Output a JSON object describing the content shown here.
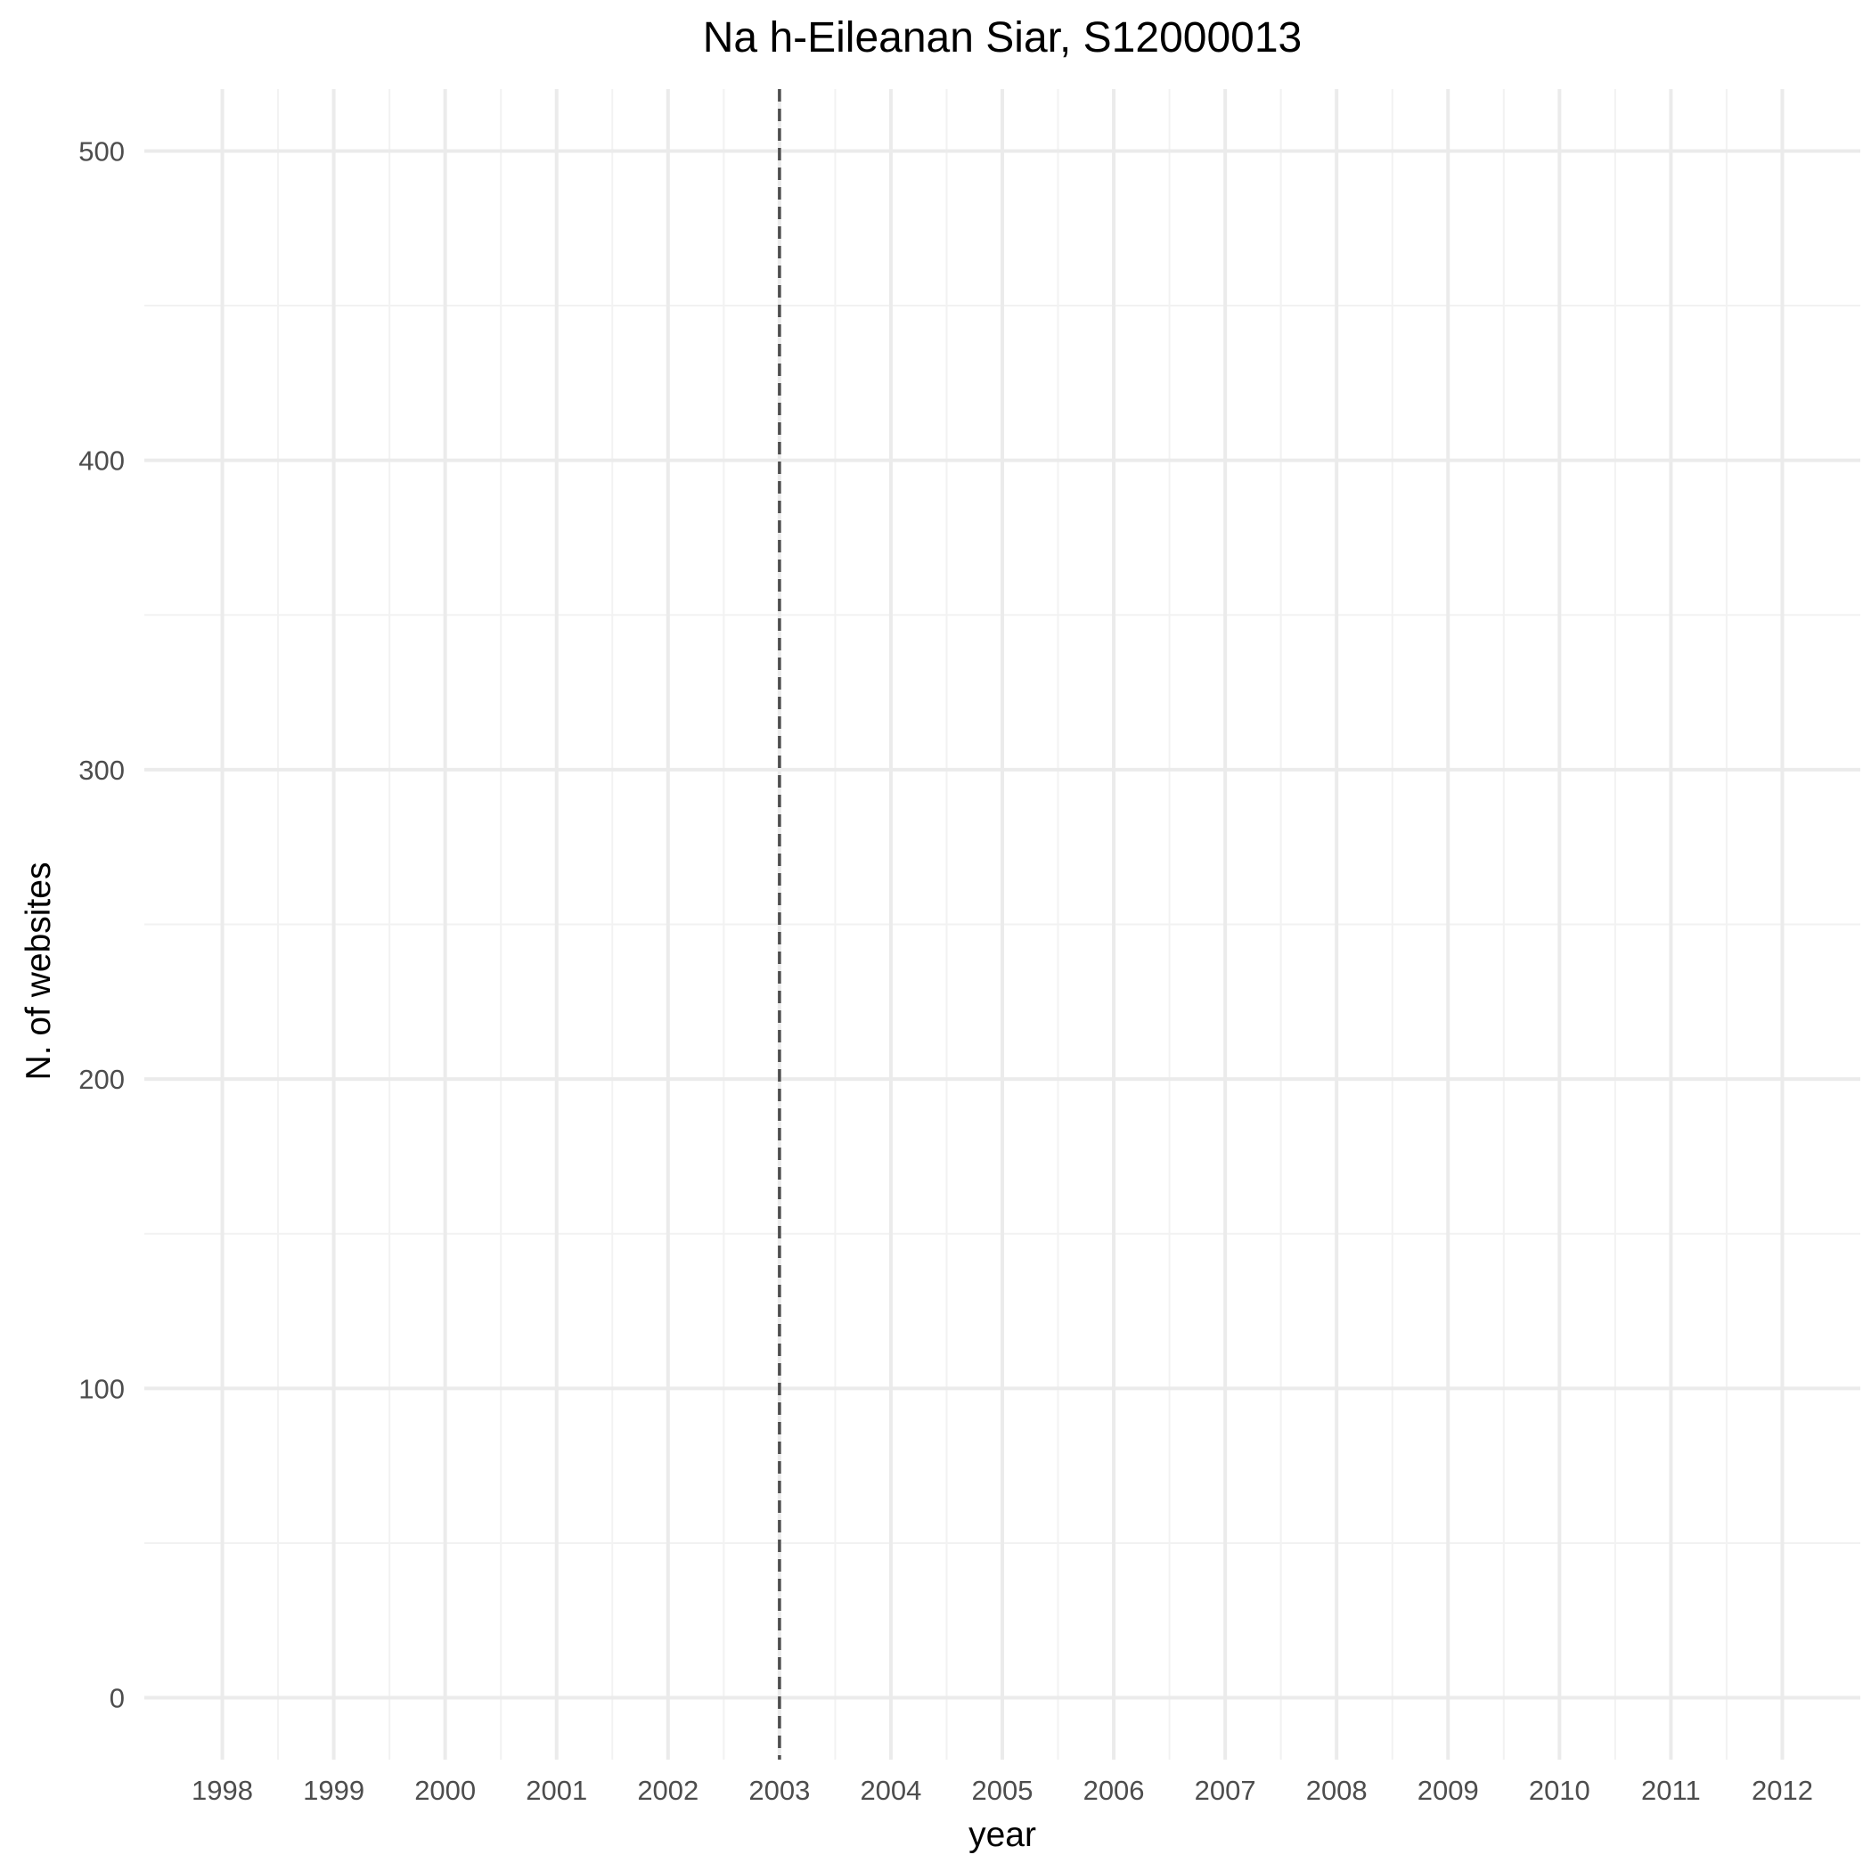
{
  "chart_data": {
    "type": "line",
    "title": "Na h-Eileanan Siar, S12000013",
    "xlabel": "year",
    "ylabel": "N. of websites",
    "x_ticks": [
      "1998",
      "1999",
      "2000",
      "2001",
      "2002",
      "2003",
      "2004",
      "2005",
      "2006",
      "2007",
      "2008",
      "2009",
      "2010",
      "2011",
      "2012"
    ],
    "y_ticks": [
      "0",
      "100",
      "200",
      "300",
      "400",
      "500"
    ],
    "xlim": [
      1997.3,
      2012.7
    ],
    "ylim": [
      -20,
      520
    ],
    "series": [],
    "reference_lines": [
      {
        "orientation": "vertical",
        "x": 2003,
        "style": "dashed",
        "color": "#4d4d4d"
      }
    ],
    "grid": true,
    "legend": "none"
  }
}
